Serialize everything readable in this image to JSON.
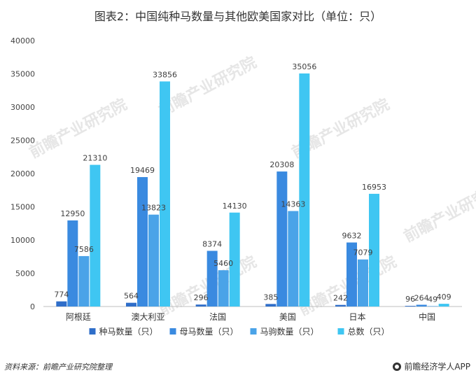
{
  "page": {
    "title": "图表2：中国纯种马数量与其他欧美国家对比（单位：只）",
    "source": "资料来源：前瞻产业研究院整理",
    "brand": "前瞻经济学人APP",
    "watermark_text": "前瞻产业研究院"
  },
  "chart_data": {
    "type": "bar",
    "title": "图表2：中国纯种马数量与其他欧美国家对比（单位：只）",
    "xlabel": "",
    "ylabel": "",
    "ylim": [
      0,
      40000
    ],
    "yticks": [
      0,
      5000,
      10000,
      15000,
      20000,
      25000,
      30000,
      35000,
      40000
    ],
    "categories": [
      "阿根廷",
      "澳大利亚",
      "法国",
      "美国",
      "日本",
      "中国"
    ],
    "series": [
      {
        "name": "种马数量（只）",
        "color": "#2f6ec9",
        "values": [
          774,
          564,
          296,
          385,
          242,
          96
        ]
      },
      {
        "name": "母马数量（只）",
        "color": "#3a8ae0",
        "values": [
          12950,
          19469,
          8374,
          20308,
          9632,
          264
        ]
      },
      {
        "name": "马驹数量（只）",
        "color": "#4aa3e8",
        "values": [
          7586,
          13823,
          5460,
          14363,
          7079,
          49
        ]
      },
      {
        "name": "总数（只）",
        "color": "#3fc6f2",
        "values": [
          21310,
          33856,
          14130,
          35056,
          16953,
          409
        ]
      }
    ],
    "grid": false,
    "legend_position": "bottom"
  }
}
